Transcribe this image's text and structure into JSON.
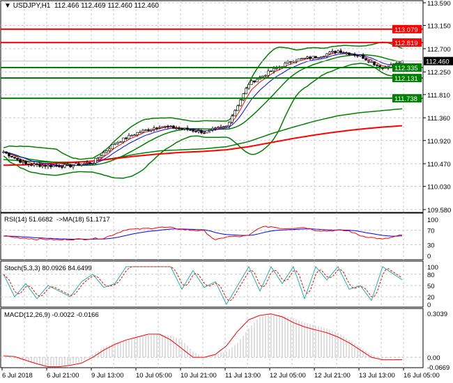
{
  "header": {
    "symbol": "USDJPY,H1",
    "ohlc": "112.466 112.469 112.460 112.460"
  },
  "indicators": {
    "rsi": "RSI(14) 51.6682  ->MA(18) 51.1717",
    "stoch": "Stoch(5,3,3) 80.0926 84.6499",
    "macd": "MACD(12,26,9) -0.0022 -0.0166"
  },
  "chart_data": [
    {
      "type": "candlestick",
      "title": "USDJPY,H1",
      "ylim": [
        109.58,
        113.59
      ],
      "yticks": [
        "113.590",
        "113.150",
        "112.700",
        "112.250",
        "111.810",
        "111.360",
        "110.920",
        "110.470",
        "110.030",
        "109.580"
      ],
      "xticks": [
        "6 Jul 2018",
        "6 Jul 21:00",
        "9 Jul 13:00",
        "10 Jul 05:00",
        "10 Jul 21:00",
        "11 Jul 13:00",
        "12 Jul 05:00",
        "12 Jul 21:00",
        "13 Jul 13:00",
        "16 Jul 05:00"
      ],
      "close_8h": [
        110.7,
        110.46,
        110.43,
        110.43,
        110.5,
        110.87,
        111.07,
        111.2,
        111.15,
        111.08,
        111.2,
        112.02,
        112.27,
        112.48,
        112.54,
        112.66,
        112.56,
        112.32,
        112.46
      ],
      "ma_red_8h": [
        110.44,
        110.45,
        110.47,
        110.49,
        110.52,
        110.57,
        110.62,
        110.66,
        110.69,
        110.71,
        110.74,
        110.8,
        110.88,
        110.96,
        111.03,
        111.09,
        111.14,
        111.18,
        111.21
      ],
      "ma_green_8h": [
        110.55,
        110.52,
        110.5,
        110.5,
        110.52,
        110.58,
        110.66,
        110.72,
        110.74,
        110.76,
        110.8,
        110.9,
        111.05,
        111.18,
        111.3,
        111.4,
        111.46,
        111.5,
        111.54
      ],
      "levels": [
        {
          "price": "113.079",
          "color": "#ff0000"
        },
        {
          "price": "112.819",
          "color": "#ff0000"
        },
        {
          "price": "112.335",
          "color": "#008000"
        },
        {
          "price": "112.131",
          "color": "#008000"
        },
        {
          "price": "111.738",
          "color": "#008000"
        }
      ],
      "current_price": "112.460",
      "colors": {
        "bands": "#008000",
        "fast_ma": "#ff0000",
        "slow_ma": "#0000ff"
      }
    },
    {
      "type": "line",
      "name": "RSI",
      "ylim": [
        0,
        100
      ],
      "yticks": [
        "100",
        "70",
        "30",
        "0"
      ],
      "rsi_4h": [
        55,
        50,
        48,
        45,
        45,
        43,
        45,
        45,
        47,
        48,
        60,
        72,
        73,
        75,
        78,
        77,
        72,
        70,
        68,
        42,
        52,
        52,
        55,
        78,
        80,
        75,
        76,
        78,
        70,
        68,
        70,
        68,
        55,
        50,
        45,
        51.67
      ],
      "colors": {
        "rsi": "#ff0000",
        "ma": "#0000ff"
      }
    },
    {
      "type": "line",
      "name": "Stochastic",
      "ylim": [
        0,
        100
      ],
      "yticks": [
        "100",
        "80",
        "50",
        "20",
        "0"
      ],
      "main_4h": [
        80,
        20,
        55,
        15,
        50,
        35,
        20,
        60,
        80,
        45,
        55,
        100,
        100,
        100,
        100,
        100,
        40,
        90,
        45,
        60,
        0,
        50,
        100,
        35,
        100,
        55,
        100,
        15,
        100,
        65,
        100,
        40,
        50,
        10,
        100,
        80.09
      ],
      "colors": {
        "main": "#20b2aa",
        "signal": "#ff0000"
      }
    },
    {
      "type": "bar",
      "name": "MACD",
      "ylim": [
        -0.0669,
        0.3039
      ],
      "yticks": [
        "0.3039",
        "0.00",
        "-0.0669"
      ],
      "hist_4h": [
        0,
        -0.01,
        -0.03,
        -0.05,
        -0.06,
        -0.06,
        -0.05,
        -0.03,
        0.02,
        0.07,
        0.1,
        0.12,
        0.14,
        0.15,
        0.16,
        0.15,
        0.12,
        0.04,
        0.0,
        0.02,
        0.04,
        0.1,
        0.2,
        0.28,
        0.3,
        0.29,
        0.27,
        0.24,
        0.22,
        0.2,
        0.17,
        0.12,
        0.07,
        0.02,
        -0.01,
        -0.0022
      ],
      "signal_4h": [
        0.01,
        0.005,
        -0.02,
        -0.045,
        -0.065,
        -0.065,
        -0.055,
        -0.04,
        0.0,
        0.05,
        0.09,
        0.12,
        0.14,
        0.16,
        0.16,
        0.12,
        0.06,
        0.0,
        0.0,
        0.02,
        0.08,
        0.18,
        0.26,
        0.29,
        0.3,
        0.28,
        0.24,
        0.21,
        0.19,
        0.17,
        0.14,
        0.1,
        0.05,
        0.0,
        -0.017,
        -0.0166
      ],
      "colors": {
        "hist": "#c0c0c0",
        "signal": "#ff0000"
      }
    }
  ]
}
